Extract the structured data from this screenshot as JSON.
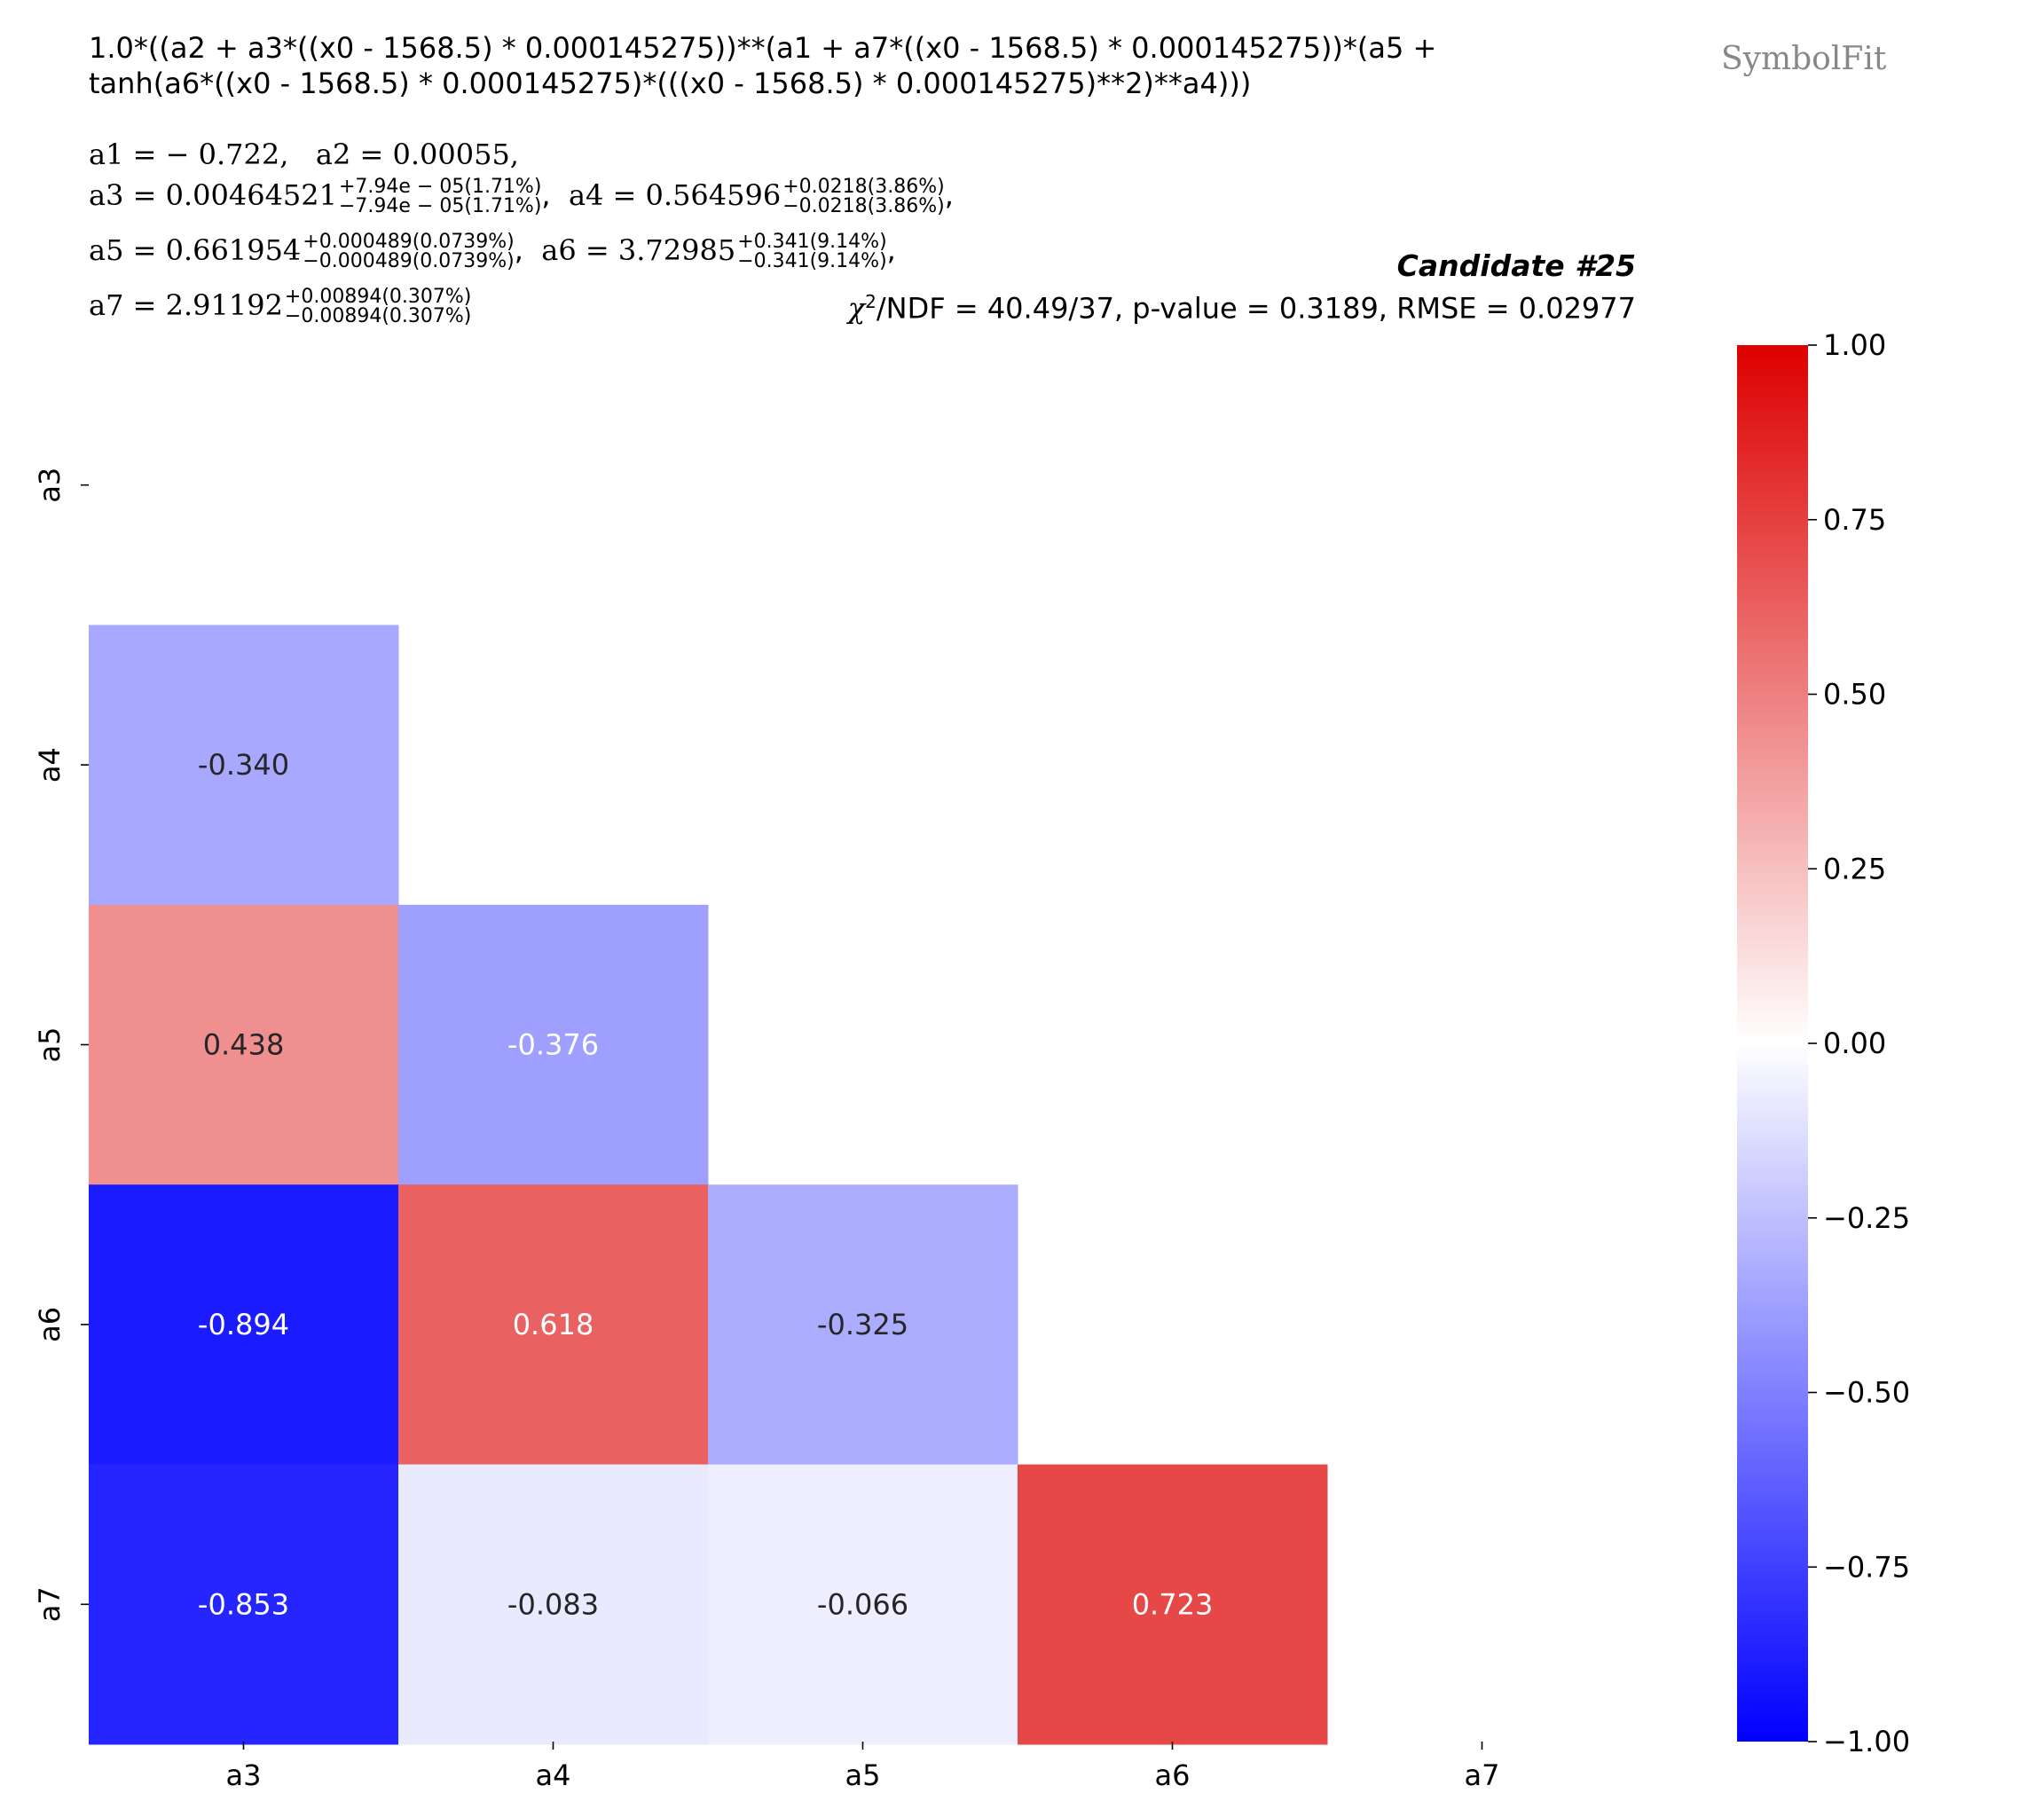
{
  "header": {
    "formula_line1": "1.0*((a2 + a3*((x0 - 1568.5) * 0.000145275))**(a1 + a7*((x0 - 1568.5) * 0.000145275))*(a5 +",
    "formula_line2": "tanh(a6*((x0 - 1568.5) * 0.000145275)*(((x0 - 1568.5) * 0.000145275)**2)**a4)))",
    "params": {
      "a1": "a1 = − 0.722,",
      "a2": "a2 = 0.00055,",
      "a3_name": "a3 = ",
      "a3_value": "0.00464521",
      "a3_up": "+7.94e − 05(1.71%)",
      "a3_down": "−7.94e − 05(1.71%)",
      "a4_name": "a4 = ",
      "a4_value": "0.564596",
      "a4_up": "+0.0218(3.86%)",
      "a4_down": "−0.0218(3.86%)",
      "a5_name": "a5 = ",
      "a5_value": "0.661954",
      "a5_up": "+0.000489(0.0739%)",
      "a5_down": "−0.000489(0.0739%)",
      "a6_name": "a6 = ",
      "a6_value": "3.72985",
      "a6_up": "+0.341(9.14%)",
      "a6_down": "−0.341(9.14%)",
      "a7_name": "a7 = ",
      "a7_value": "2.91192",
      "a7_up": "+0.00894(0.307%)",
      "a7_down": "−0.00894(0.307%)",
      "sep": ",",
      "sep_a3": ","
    },
    "candidate": "Candidate #25",
    "stats_chi": "χ",
    "stats_sup": "2",
    "stats_rest": "/NDF = 40.49/37, p-value = 0.3189, RMSE = 0.02977",
    "logo": "SymbolFit"
  },
  "chart_data": {
    "type": "heatmap",
    "title": "Candidate #25",
    "x_labels": [
      "a3",
      "a4",
      "a5",
      "a6",
      "a7"
    ],
    "y_labels": [
      "a3",
      "a4",
      "a5",
      "a6",
      "a7"
    ],
    "cells": [
      {
        "row": "a4",
        "col": "a3",
        "value": -0.34,
        "label": "-0.340"
      },
      {
        "row": "a5",
        "col": "a3",
        "value": 0.438,
        "label": "0.438"
      },
      {
        "row": "a5",
        "col": "a4",
        "value": -0.376,
        "label": "-0.376"
      },
      {
        "row": "a6",
        "col": "a3",
        "value": -0.894,
        "label": "-0.894"
      },
      {
        "row": "a6",
        "col": "a4",
        "value": 0.618,
        "label": "0.618"
      },
      {
        "row": "a6",
        "col": "a5",
        "value": -0.325,
        "label": "-0.325"
      },
      {
        "row": "a7",
        "col": "a3",
        "value": -0.853,
        "label": "-0.853"
      },
      {
        "row": "a7",
        "col": "a4",
        "value": -0.083,
        "label": "-0.083"
      },
      {
        "row": "a7",
        "col": "a5",
        "value": -0.066,
        "label": "-0.066"
      },
      {
        "row": "a7",
        "col": "a6",
        "value": 0.723,
        "label": "0.723"
      }
    ],
    "colorbar": {
      "range": [
        -1.0,
        1.0
      ],
      "ticks": [
        1.0,
        0.75,
        0.5,
        0.25,
        0.0,
        -0.25,
        -0.5,
        -0.75,
        -1.0
      ],
      "tick_labels": [
        "1.00",
        "0.75",
        "0.50",
        "0.25",
        "0.00",
        "−0.25",
        "−0.50",
        "−0.75",
        "−1.00"
      ],
      "colormap": {
        "low": "#0000ff",
        "mid": "#ffffff",
        "high": "#dd0000"
      }
    }
  }
}
